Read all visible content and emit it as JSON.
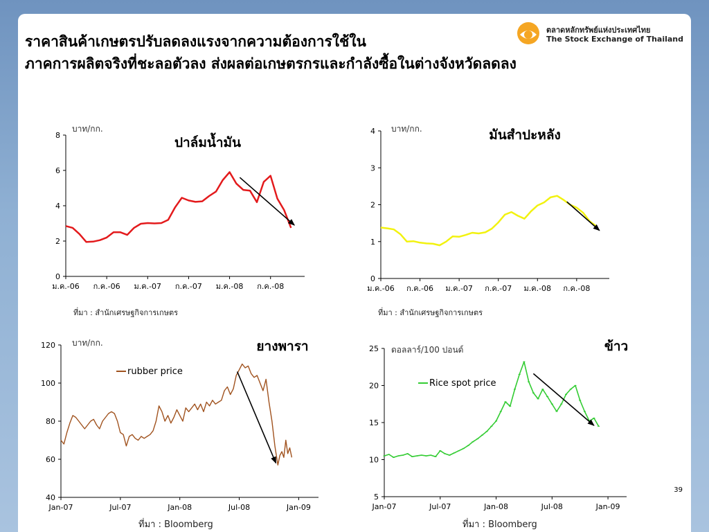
{
  "slide": {
    "title_line1": "ราคาสินค้าเกษตรปรับลดลงแรงจากความต้องการใช้ใน",
    "title_line2": "ภาคการผลิตจริงที่ชะลอตัวลง ส่งผลต่อเกษตรกรและกำลังซื้อในต่างจังหวัดลดลง",
    "logo_line1": "ตลาดหลักทรัพย์แห่งประเทศไทย",
    "logo_line2": "The Stock Exchange of Thailand",
    "page_number": "39"
  },
  "colors": {
    "palm": "#e31a1c",
    "cassava": "#f2f20f",
    "rubber": "#a0521e",
    "rice": "#33cc33",
    "logo_orange": "#f5a623"
  },
  "chart_data": [
    {
      "id": "palm",
      "type": "line",
      "title": "ปาล์มน้ำมัน",
      "ylabel": "บาท/กก.",
      "source": "ที่มา : สำนักเศรษฐกิจการเกษตร",
      "ylim": [
        0,
        8
      ],
      "yticks": [
        "0",
        "2",
        "4",
        "6",
        "8"
      ],
      "xlim": [
        0,
        35
      ],
      "xticks": [
        {
          "x": 0,
          "label": "ม.ค.-06"
        },
        {
          "x": 6,
          "label": "ก.ค.-06"
        },
        {
          "x": 12,
          "label": "ม.ค.-07"
        },
        {
          "x": 18,
          "label": "ก.ค.-07"
        },
        {
          "x": 24,
          "label": "ม.ค.-08"
        },
        {
          "x": 30,
          "label": "ก.ค.-08"
        }
      ],
      "series": [
        {
          "x": [
            0,
            1,
            2,
            3,
            4,
            5,
            6,
            7,
            8,
            9,
            10,
            11,
            12,
            13,
            14,
            15,
            16,
            17,
            18,
            19,
            20,
            21,
            22,
            23,
            24,
            25,
            26,
            27,
            28,
            29,
            30,
            31,
            32,
            33
          ],
          "y": [
            2.85,
            2.75,
            2.4,
            1.95,
            1.97,
            2.05,
            2.2,
            2.5,
            2.5,
            2.35,
            2.75,
            2.98,
            3.02,
            3.0,
            3.02,
            3.2,
            3.9,
            4.45,
            4.3,
            4.22,
            4.25,
            4.55,
            4.8,
            5.45,
            5.9,
            5.25,
            4.9,
            4.85,
            4.2,
            5.35,
            5.7,
            4.4,
            3.75,
            2.75
          ]
        }
      ],
      "arrow": {
        "from": [
          25.5,
          5.6
        ],
        "to": [
          33.5,
          2.9
        ]
      }
    },
    {
      "id": "cassava",
      "type": "line",
      "title": "มันสำปะหลัง",
      "ylabel": "บาท/กก.",
      "source": "ที่มา : สำนักเศรษฐกิจการเกษตร",
      "ylim": [
        0,
        4
      ],
      "yticks": [
        "0",
        "1",
        "2",
        "3",
        "4"
      ],
      "xlim": [
        0,
        35
      ],
      "xticks": [
        {
          "x": 0,
          "label": "ม.ค.-06"
        },
        {
          "x": 6,
          "label": "ก.ค.-06"
        },
        {
          "x": 12,
          "label": "ม.ค.-07"
        },
        {
          "x": 18,
          "label": "ก.ค.-07"
        },
        {
          "x": 24,
          "label": "ม.ค.-08"
        },
        {
          "x": 30,
          "label": "ก.ค.-08"
        }
      ],
      "series": [
        {
          "x": [
            0,
            1,
            2,
            3,
            4,
            5,
            6,
            7,
            8,
            9,
            10,
            11,
            12,
            13,
            14,
            15,
            16,
            17,
            18,
            19,
            20,
            21,
            22,
            23,
            24,
            25,
            26,
            27,
            28,
            29,
            30,
            31,
            32,
            33
          ],
          "y": [
            1.38,
            1.36,
            1.33,
            1.2,
            1.0,
            1.01,
            0.97,
            0.95,
            0.94,
            0.9,
            1.0,
            1.14,
            1.13,
            1.18,
            1.24,
            1.22,
            1.25,
            1.35,
            1.52,
            1.73,
            1.8,
            1.7,
            1.62,
            1.82,
            1.98,
            2.06,
            2.2,
            2.24,
            2.13,
            2.0,
            1.92,
            1.78,
            1.55,
            1.42
          ]
        }
      ],
      "arrow": {
        "from": [
          28.5,
          2.08
        ],
        "to": [
          33.5,
          1.3
        ]
      }
    },
    {
      "id": "rubber",
      "type": "line",
      "title": "ยางพารา",
      "ylabel": "บาท/กก.",
      "source": "ที่มา : Bloomberg",
      "legend": "rubber price",
      "ylim": [
        40,
        120
      ],
      "yticks": [
        "40",
        "60",
        "80",
        "100",
        "120"
      ],
      "xlim": [
        0,
        26
      ],
      "xticks": [
        {
          "x": 0,
          "label": "Jan-07"
        },
        {
          "x": 6,
          "label": "Jul-07"
        },
        {
          "x": 12,
          "label": "Jan-08"
        },
        {
          "x": 18,
          "label": "Jul-08"
        },
        {
          "x": 24,
          "label": "Jan-09"
        }
      ],
      "series": [
        {
          "name": "rubber price",
          "x": [
            0,
            0.3,
            0.6,
            0.9,
            1.2,
            1.5,
            1.8,
            2.1,
            2.4,
            2.7,
            3.0,
            3.3,
            3.6,
            3.9,
            4.2,
            4.5,
            4.8,
            5.1,
            5.4,
            5.7,
            6.0,
            6.3,
            6.6,
            6.9,
            7.2,
            7.5,
            7.8,
            8.1,
            8.4,
            8.7,
            9.0,
            9.3,
            9.6,
            9.9,
            10.2,
            10.5,
            10.8,
            11.1,
            11.4,
            11.7,
            12.0,
            12.3,
            12.6,
            12.9,
            13.2,
            13.5,
            13.8,
            14.1,
            14.4,
            14.7,
            15.0,
            15.3,
            15.6,
            15.9,
            16.2,
            16.5,
            16.8,
            17.1,
            17.4,
            17.7,
            18.0,
            18.3,
            18.6,
            18.9,
            19.2,
            19.5,
            19.8,
            20.1,
            20.4,
            20.7,
            21.0,
            21.3,
            21.6,
            21.9,
            22.1,
            22.3,
            22.5,
            22.7,
            22.9,
            23.1,
            23.3
          ],
          "y": [
            70,
            68,
            74,
            79,
            83,
            82,
            80,
            78,
            76,
            78,
            80,
            81,
            78,
            76,
            80,
            82,
            84,
            85,
            84,
            80,
            74,
            73,
            67,
            72,
            73,
            71,
            70,
            72,
            71,
            72,
            73,
            75,
            80,
            88,
            85,
            80,
            83,
            79,
            82,
            86,
            83,
            80,
            87,
            85,
            87,
            89,
            86,
            89,
            85,
            90,
            88,
            91,
            89,
            90,
            91,
            96,
            98,
            94,
            97,
            104,
            107,
            110,
            108,
            109,
            105,
            103,
            104,
            100,
            96,
            102,
            90,
            80,
            67,
            57,
            62,
            64,
            61,
            70,
            63,
            66,
            61
          ]
        }
      ],
      "arrow": {
        "from": [
          17.8,
          106
        ],
        "to": [
          21.7,
          58
        ]
      }
    },
    {
      "id": "rice",
      "type": "line",
      "title": "ข้าว",
      "ylabel": "ดอลลาร์/100 ปอนด์",
      "source": "ที่มา : Bloomberg",
      "legend": "Rice spot price",
      "ylim": [
        5,
        25
      ],
      "yticks": [
        "5",
        "10",
        "15",
        "20",
        "25"
      ],
      "xlim": [
        0,
        26
      ],
      "xticks": [
        {
          "x": 0,
          "label": "Jan-07"
        },
        {
          "x": 6,
          "label": "Jul-07"
        },
        {
          "x": 12,
          "label": "Jan-08"
        },
        {
          "x": 18,
          "label": "Jul-08"
        },
        {
          "x": 24,
          "label": "Jan-09"
        }
      ],
      "series": [
        {
          "name": "Rice spot price",
          "x": [
            0,
            0.5,
            1,
            1.5,
            2,
            2.5,
            3,
            3.5,
            4,
            4.5,
            5,
            5.5,
            6,
            6.5,
            7,
            7.5,
            8,
            8.5,
            9,
            9.5,
            10,
            10.5,
            11,
            11.5,
            12,
            12.5,
            13,
            13.5,
            14,
            14.5,
            15,
            15.5,
            16,
            16.5,
            17,
            17.5,
            18,
            18.5,
            19,
            19.5,
            20,
            20.5,
            21,
            21.5,
            22,
            22.5,
            23
          ],
          "y": [
            10.5,
            10.7,
            10.3,
            10.5,
            10.6,
            10.8,
            10.4,
            10.5,
            10.6,
            10.5,
            10.6,
            10.4,
            11.2,
            10.8,
            10.6,
            10.9,
            11.2,
            11.5,
            11.9,
            12.4,
            12.8,
            13.3,
            13.8,
            14.5,
            15.2,
            16.5,
            17.8,
            17.2,
            19.5,
            21.5,
            23.2,
            20.5,
            19.0,
            18.2,
            19.5,
            18.5,
            17.5,
            16.5,
            17.5,
            18.8,
            19.5,
            20.0,
            18.0,
            16.5,
            15.2,
            15.6,
            14.5
          ]
        }
      ],
      "arrow": {
        "from": [
          16.0,
          21.6
        ],
        "to": [
          22.5,
          14.6
        ]
      }
    }
  ]
}
